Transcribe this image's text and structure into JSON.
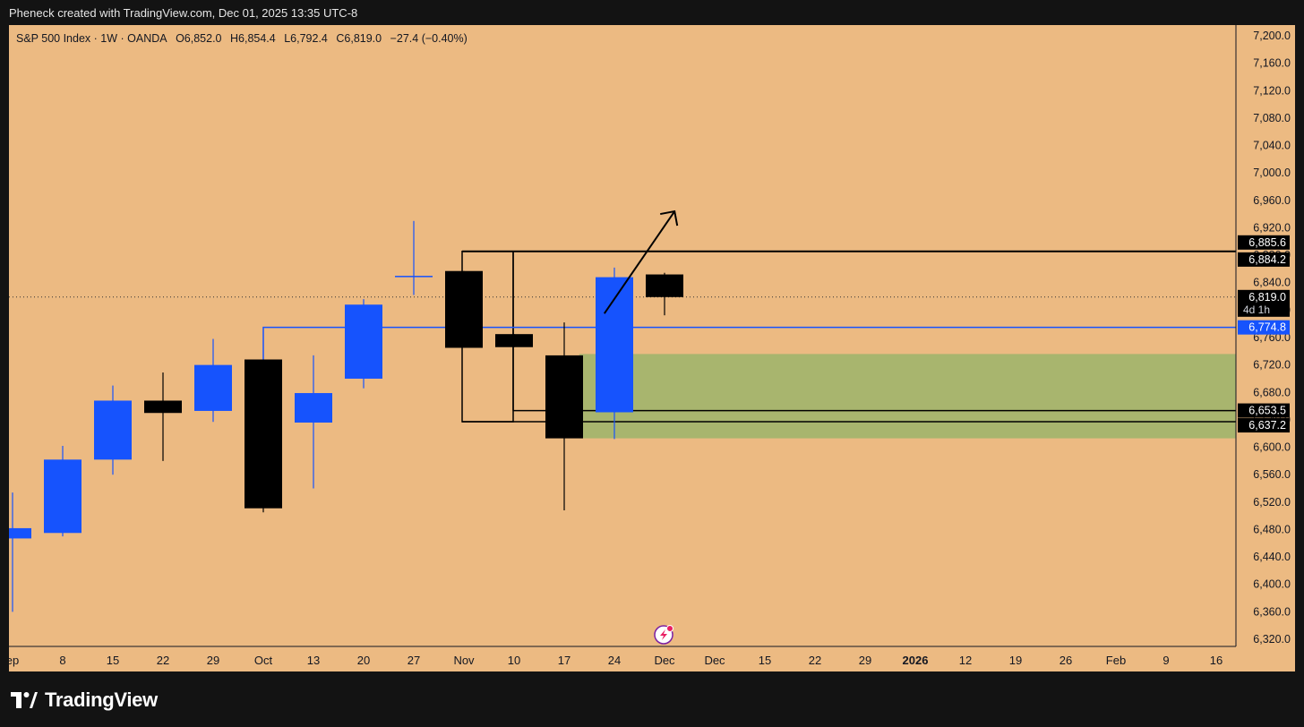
{
  "header": {
    "attribution": "Pheneck created with TradingView.com, Dec 01, 2025 13:35 UTC-8"
  },
  "legend": {
    "symbol": "S&P 500 Index · 1W · OANDA",
    "open": "O6,852.0",
    "high": "H6,854.4",
    "low": "L6,792.4",
    "close": "C6,819.0",
    "change": "−27.4 (−0.40%)"
  },
  "footer": {
    "logo_text": "TradingView"
  },
  "colors": {
    "background": "#ecba82",
    "bullish": "#1653fd",
    "bearish": "#000000",
    "zone": "#a8b56e",
    "accent_line": "#1653fd"
  },
  "chart_data": {
    "type": "candlestick",
    "ylim": [
      6320,
      7200
    ],
    "y_ticks": [
      "7,200.0",
      "7,160.0",
      "7,120.0",
      "7,080.0",
      "7,040.0",
      "7,000.0",
      "6,960.0",
      "6,920.0",
      "6,880.0",
      "6,840.0",
      "6,800.0",
      "6,760.0",
      "6,720.0",
      "6,680.0",
      "6,640.0",
      "6,600.0",
      "6,560.0",
      "6,520.0",
      "6,480.0",
      "6,440.0",
      "6,400.0",
      "6,360.0",
      "6,320.0"
    ],
    "x_ticks": [
      {
        "label": "ep",
        "index": 0
      },
      {
        "label": "8",
        "index": 1
      },
      {
        "label": "15",
        "index": 2
      },
      {
        "label": "22",
        "index": 3
      },
      {
        "label": "29",
        "index": 4
      },
      {
        "label": "Oct",
        "index": 5
      },
      {
        "label": "13",
        "index": 6
      },
      {
        "label": "20",
        "index": 7
      },
      {
        "label": "27",
        "index": 8
      },
      {
        "label": "Nov",
        "index": 9
      },
      {
        "label": "10",
        "index": 10
      },
      {
        "label": "17",
        "index": 11
      },
      {
        "label": "24",
        "index": 12
      },
      {
        "label": "Dec",
        "index": 13
      },
      {
        "label": "Dec",
        "index": 14
      },
      {
        "label": "15",
        "index": 15
      },
      {
        "label": "22",
        "index": 16
      },
      {
        "label": "29",
        "index": 17
      },
      {
        "label": "2026",
        "index": 18,
        "bold": true
      },
      {
        "label": "12",
        "index": 19
      },
      {
        "label": "19",
        "index": 20
      },
      {
        "label": "26",
        "index": 21
      },
      {
        "label": "Feb",
        "index": 22
      },
      {
        "label": "9",
        "index": 23
      },
      {
        "label": "16",
        "index": 24
      }
    ],
    "candles": [
      {
        "i": 0,
        "o": 6467,
        "h": 6534,
        "l": 6360,
        "c": 6482
      },
      {
        "i": 1,
        "o": 6475,
        "h": 6602,
        "l": 6470,
        "c": 6582
      },
      {
        "i": 2,
        "o": 6582,
        "h": 6690,
        "l": 6560,
        "c": 6668
      },
      {
        "i": 3,
        "o": 6668,
        "h": 6709,
        "l": 6580,
        "c": 6650
      },
      {
        "i": 4,
        "o": 6653,
        "h": 6758,
        "l": 6637,
        "c": 6720
      },
      {
        "i": 5,
        "o": 6728,
        "h": 6728,
        "l": 6505,
        "c": 6511
      },
      {
        "i": 6,
        "o": 6636,
        "h": 6734,
        "l": 6540,
        "c": 6679
      },
      {
        "i": 7,
        "o": 6700,
        "h": 6816,
        "l": 6686,
        "c": 6808
      },
      {
        "i": 8,
        "o": 6850,
        "h": 6930,
        "l": 6822,
        "c": 6850
      },
      {
        "i": 9,
        "o": 6857,
        "h": 6857,
        "l": 6745,
        "c": 6745
      },
      {
        "i": 10,
        "o": 6765,
        "h": 6765,
        "l": 6746,
        "c": 6746
      },
      {
        "i": 11,
        "o": 6734,
        "h": 6782,
        "l": 6508,
        "c": 6613
      },
      {
        "i": 12,
        "o": 6651,
        "h": 6862,
        "l": 6612,
        "c": 6848
      },
      {
        "i": 13,
        "o": 6852,
        "h": 6854.4,
        "l": 6792.4,
        "c": 6819
      }
    ],
    "levels": [
      {
        "price": 6885.6,
        "label": "6,885.6"
      },
      {
        "price": 6884.2,
        "label": "6,884.2"
      },
      {
        "price": 6819.0,
        "label": "6,819.0",
        "sublabel": "4d 1h"
      },
      {
        "price": 6774.8,
        "label": "6,774.8"
      },
      {
        "price": 6653.5,
        "label": "6,653.5"
      },
      {
        "price": 6637.2,
        "label": "6,637.2"
      }
    ],
    "zone": {
      "top": 6736,
      "bottom": 6613,
      "from_index": 11.3
    },
    "annotation": {
      "type": "arrow",
      "from": [
        11.8,
        6795
      ],
      "to": [
        13.2,
        6944
      ]
    }
  }
}
